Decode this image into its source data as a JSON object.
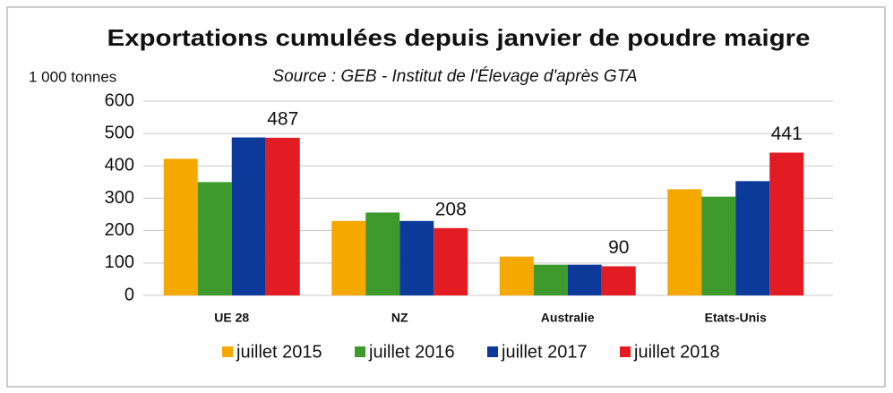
{
  "chart_data": {
    "type": "bar",
    "title": "Exportations cumulées depuis janvier de poudre maigre",
    "subtitle": "Source : GEB - Institut de l'Élevage d'après GTA",
    "y_label": "1 000 tonnes",
    "categories": [
      "UE 28",
      "NZ",
      "Australie",
      "Etats-Unis"
    ],
    "series": [
      {
        "name": "juillet 2015",
        "color": "#f5a800",
        "values": [
          422,
          230,
          120,
          328
        ]
      },
      {
        "name": "juillet 2016",
        "color": "#3e9a2c",
        "values": [
          350,
          256,
          95,
          305
        ]
      },
      {
        "name": "juillet 2017",
        "color": "#0c3a9b",
        "values": [
          488,
          230,
          95,
          353
        ]
      },
      {
        "name": "juillet 2018",
        "color": "#e31b23",
        "values": [
          487,
          208,
          90,
          441
        ],
        "show_labels": true
      }
    ],
    "ylim": [
      0,
      600
    ],
    "yticks": [
      0,
      100,
      200,
      300,
      400,
      500,
      600
    ],
    "grid": true,
    "legend": "bottom"
  }
}
